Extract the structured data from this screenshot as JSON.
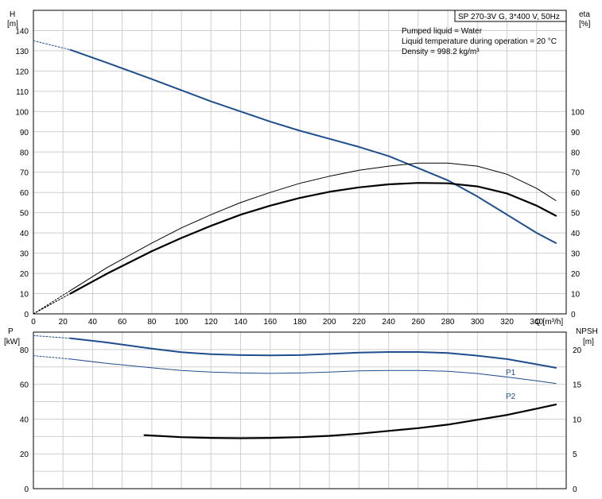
{
  "chart_data": [
    {
      "type": "line",
      "x_axis": {
        "label": "Q [m³/h]",
        "range": [
          0,
          360
        ],
        "ticks": [
          0,
          20,
          40,
          60,
          80,
          100,
          120,
          140,
          160,
          180,
          200,
          220,
          240,
          260,
          280,
          300,
          320,
          340
        ]
      },
      "y_axis_left": {
        "label": "H",
        "unit": "[m]",
        "range": [
          0,
          150
        ],
        "ticks": [
          0,
          10,
          20,
          30,
          40,
          50,
          60,
          70,
          80,
          90,
          100,
          110,
          120,
          130,
          140
        ]
      },
      "y_axis_right": {
        "label": "eta",
        "unit": "[%]",
        "range": [
          0,
          150
        ],
        "ticks": [
          0,
          10,
          20,
          30,
          40,
          50,
          60,
          70,
          80,
          90,
          100
        ]
      },
      "grid": true,
      "info_box": {
        "title": "SP 270-3V G, 3*400 V, 50Hz",
        "lines": [
          "Pumped liquid = Water",
          "Liquid temperature during operation = 20 °C",
          "Density = 998.2 kg/m³"
        ]
      },
      "series": [
        {
          "key": "H",
          "color": "#1f4e8c",
          "points": [
            [
              0,
              135
            ],
            [
              25,
              130.5
            ],
            [
              50,
              124
            ],
            [
              80,
              116
            ],
            [
              100,
              110.5
            ],
            [
              120,
              105
            ],
            [
              140,
              100
            ],
            [
              160,
              95
            ],
            [
              180,
              90.5
            ],
            [
              200,
              86.5
            ],
            [
              220,
              82.5
            ],
            [
              240,
              78
            ],
            [
              260,
              72
            ],
            [
              280,
              66
            ],
            [
              300,
              58
            ],
            [
              320,
              49
            ],
            [
              340,
              40
            ],
            [
              353,
              35
            ]
          ]
        },
        {
          "key": "eta_total",
          "color": "#000000",
          "points": [
            [
              0,
              0
            ],
            [
              25,
              10
            ],
            [
              50,
              20
            ],
            [
              80,
              31
            ],
            [
              100,
              37.5
            ],
            [
              120,
              43.5
            ],
            [
              140,
              49
            ],
            [
              160,
              53.5
            ],
            [
              180,
              57.3
            ],
            [
              200,
              60.3
            ],
            [
              220,
              62.5
            ],
            [
              240,
              64
            ],
            [
              260,
              64.7
            ],
            [
              280,
              64.5
            ],
            [
              300,
              63
            ],
            [
              320,
              59.5
            ],
            [
              340,
              53.5
            ],
            [
              353,
              48.5
            ]
          ]
        },
        {
          "key": "eta_hydraulic",
          "color": "#000000",
          "points": [
            [
              0,
              0
            ],
            [
              25,
              11.5
            ],
            [
              50,
              23
            ],
            [
              80,
              35
            ],
            [
              100,
              42.5
            ],
            [
              120,
              49
            ],
            [
              140,
              55
            ],
            [
              160,
              60
            ],
            [
              180,
              64.5
            ],
            [
              200,
              68
            ],
            [
              220,
              71
            ],
            [
              240,
              73
            ],
            [
              260,
              74.5
            ],
            [
              280,
              74.5
            ],
            [
              300,
              73
            ],
            [
              320,
              69
            ],
            [
              340,
              62
            ],
            [
              353,
              56
            ]
          ]
        }
      ]
    },
    {
      "type": "line",
      "x_axis": {
        "range": [
          0,
          360
        ]
      },
      "y_axis_left": {
        "label": "P",
        "unit": "[kW]",
        "range": [
          0,
          90
        ],
        "ticks": [
          0,
          20,
          40,
          60,
          80
        ]
      },
      "y_axis_right": {
        "label": "NPSH",
        "unit": "[m]",
        "range": [
          0,
          22.5
        ],
        "ticks": [
          0,
          5,
          10,
          15,
          20
        ]
      },
      "grid": true,
      "series": [
        {
          "name": "P1",
          "color": "#1f4e8c",
          "axis": "left",
          "points": [
            [
              0,
              88
            ],
            [
              25,
              86.5
            ],
            [
              50,
              84
            ],
            [
              80,
              80.5
            ],
            [
              100,
              78.5
            ],
            [
              120,
              77.3
            ],
            [
              140,
              76.8
            ],
            [
              160,
              76.6
            ],
            [
              180,
              76.8
            ],
            [
              200,
              77.5
            ],
            [
              220,
              78.2
            ],
            [
              240,
              78.6
            ],
            [
              260,
              78.6
            ],
            [
              280,
              78
            ],
            [
              300,
              76.5
            ],
            [
              320,
              74.5
            ],
            [
              340,
              71.5
            ],
            [
              353,
              69.5
            ]
          ]
        },
        {
          "name": "P2",
          "color": "#1f4e8c",
          "axis": "left",
          "points": [
            [
              0,
              76.5
            ],
            [
              25,
              74.5
            ],
            [
              50,
              72
            ],
            [
              80,
              69.5
            ],
            [
              100,
              68
            ],
            [
              120,
              67
            ],
            [
              140,
              66.5
            ],
            [
              160,
              66.3
            ],
            [
              180,
              66.5
            ],
            [
              200,
              67
            ],
            [
              220,
              67.7
            ],
            [
              240,
              68
            ],
            [
              260,
              68
            ],
            [
              280,
              67.5
            ],
            [
              300,
              66.2
            ],
            [
              320,
              64.2
            ],
            [
              340,
              62
            ],
            [
              353,
              60.5
            ]
          ]
        },
        {
          "key": "NPSH",
          "color": "#000000",
          "axis": "right",
          "points": [
            [
              75,
              7.7
            ],
            [
              100,
              7.4
            ],
            [
              120,
              7.3
            ],
            [
              140,
              7.25
            ],
            [
              160,
              7.3
            ],
            [
              180,
              7.4
            ],
            [
              200,
              7.6
            ],
            [
              220,
              7.9
            ],
            [
              240,
              8.3
            ],
            [
              260,
              8.7
            ],
            [
              280,
              9.2
            ],
            [
              300,
              9.9
            ],
            [
              320,
              10.6
            ],
            [
              340,
              11.5
            ],
            [
              353,
              12.1
            ]
          ]
        }
      ]
    }
  ]
}
